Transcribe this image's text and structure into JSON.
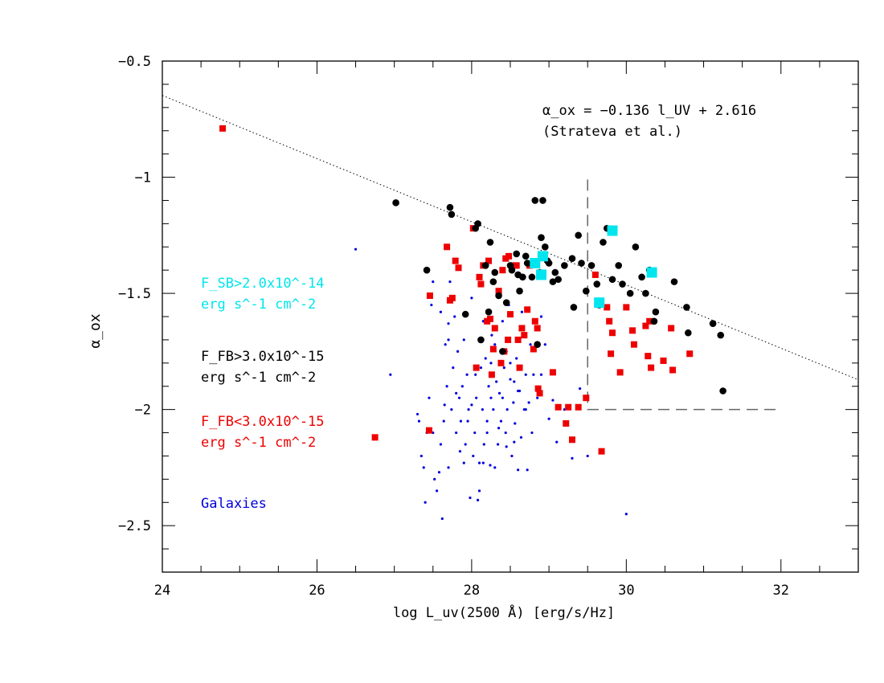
{
  "chart_data": {
    "type": "scatter",
    "xlabel": "log L_uv(2500 Å) [erg/s/Hz]",
    "ylabel": "α_ox",
    "xlim": [
      24,
      33
    ],
    "ylim": [
      -2.7,
      -0.5
    ],
    "x_ticks": [
      24,
      26,
      28,
      30,
      32
    ],
    "y_ticks": [
      -2.5,
      -2,
      -1.5,
      -1,
      -0.5
    ],
    "x_tick_labels": [
      "24",
      "26",
      "28",
      "30",
      "32"
    ],
    "y_tick_labels": [
      "−2.5",
      "−2",
      "−1.5",
      "−1",
      "−0.5"
    ],
    "grid": false,
    "relation": {
      "label": "α_ox = −0.136 l_UV + 2.616",
      "citation": "(Strateva et al.)",
      "slope": -0.136,
      "intercept": 2.616,
      "style": "dotted"
    },
    "boundary": {
      "style": "dashed",
      "points": [
        [
          29.5,
          -1.01
        ],
        [
          29.5,
          -2.0
        ],
        [
          32.0,
          -2.0
        ]
      ]
    },
    "legend": [
      {
        "line1": "F_SB>2.0x10^-14",
        "line2": "erg s^-1 cm^-2",
        "color": "#00e5ee"
      },
      {
        "line1": "F_FB>3.0x10^-15",
        "line2": "erg s^-1 cm^-2",
        "color": "#000000"
      },
      {
        "line1": "F_FB<3.0x10^-15",
        "line2": "erg s^-1 cm^-2",
        "color": "#ee0000"
      },
      {
        "line1": "Galaxies",
        "line2": "",
        "color": "#0000dd"
      }
    ],
    "series": [
      {
        "marker": "dot",
        "color": "#0000dd",
        "points": [
          [
            26.5,
            -1.31
          ],
          [
            26.95,
            -1.85
          ],
          [
            27.3,
            -2.02
          ],
          [
            27.32,
            -2.05
          ],
          [
            27.35,
            -2.2
          ],
          [
            27.38,
            -2.25
          ],
          [
            27.4,
            -2.4
          ],
          [
            27.42,
            -2.1
          ],
          [
            27.45,
            -1.95
          ],
          [
            27.48,
            -1.55
          ],
          [
            27.5,
            -1.45
          ],
          [
            27.52,
            -2.3
          ],
          [
            27.55,
            -2.35
          ],
          [
            27.58,
            -2.27
          ],
          [
            27.6,
            -2.15
          ],
          [
            27.62,
            -2.47
          ],
          [
            27.64,
            -2.05
          ],
          [
            27.66,
            -1.72
          ],
          [
            27.68,
            -1.9
          ],
          [
            27.7,
            -1.63
          ],
          [
            27.72,
            -1.45
          ],
          [
            27.74,
            -2.0
          ],
          [
            27.76,
            -1.82
          ],
          [
            27.78,
            -1.6
          ],
          [
            27.8,
            -2.1
          ],
          [
            27.82,
            -1.75
          ],
          [
            27.84,
            -1.95
          ],
          [
            27.86,
            -2.05
          ],
          [
            27.88,
            -1.9
          ],
          [
            27.9,
            -1.7
          ],
          [
            27.92,
            -2.15
          ],
          [
            27.94,
            -1.85
          ],
          [
            27.96,
            -2.0
          ],
          [
            27.98,
            -2.38
          ],
          [
            28.0,
            -1.52
          ],
          [
            28.02,
            -2.2
          ],
          [
            28.04,
            -2.1
          ],
          [
            28.06,
            -1.95
          ],
          [
            28.08,
            -2.39
          ],
          [
            28.1,
            -2.23
          ],
          [
            28.12,
            -1.82
          ],
          [
            28.14,
            -2.0
          ],
          [
            28.16,
            -2.15
          ],
          [
            28.18,
            -1.78
          ],
          [
            28.2,
            -2.05
          ],
          [
            28.22,
            -1.9
          ],
          [
            28.24,
            -2.24
          ],
          [
            28.26,
            -1.68
          ],
          [
            28.28,
            -2.0
          ],
          [
            28.3,
            -1.72
          ],
          [
            28.32,
            -1.88
          ],
          [
            28.34,
            -2.15
          ],
          [
            28.36,
            -1.93
          ],
          [
            28.38,
            -2.05
          ],
          [
            28.4,
            -1.62
          ],
          [
            28.42,
            -1.82
          ],
          [
            28.44,
            -2.1
          ],
          [
            28.46,
            -2.0
          ],
          [
            28.48,
            -1.55
          ],
          [
            28.5,
            -1.87
          ],
          [
            28.52,
            -2.2
          ],
          [
            28.54,
            -1.97
          ],
          [
            28.56,
            -2.06
          ],
          [
            28.58,
            -1.78
          ],
          [
            28.6,
            -2.26
          ],
          [
            28.62,
            -1.92
          ],
          [
            28.64,
            -2.12
          ],
          [
            28.66,
            -1.68
          ],
          [
            28.68,
            -2.0
          ],
          [
            28.7,
            -1.85
          ],
          [
            28.72,
            -2.26
          ],
          [
            28.74,
            -1.97
          ],
          [
            28.76,
            -1.72
          ],
          [
            28.78,
            -2.1
          ],
          [
            28.8,
            -1.85
          ],
          [
            28.85,
            -1.95
          ],
          [
            28.9,
            -1.6
          ],
          [
            28.95,
            -1.72
          ],
          [
            29.0,
            -2.04
          ],
          [
            29.05,
            -1.96
          ],
          [
            29.1,
            -2.14
          ],
          [
            29.2,
            -2.0
          ],
          [
            29.3,
            -2.21
          ],
          [
            29.4,
            -1.91
          ],
          [
            29.5,
            -2.2
          ],
          [
            30.0,
            -2.45
          ],
          [
            27.6,
            -1.58
          ],
          [
            27.9,
            -2.23
          ],
          [
            28.1,
            -1.7
          ],
          [
            28.25,
            -1.8
          ],
          [
            28.35,
            -2.08
          ],
          [
            28.45,
            -1.75
          ],
          [
            28.55,
            -2.14
          ],
          [
            28.65,
            -1.58
          ],
          [
            28.1,
            -2.35
          ],
          [
            27.5,
            -2.1
          ],
          [
            27.7,
            -1.7
          ],
          [
            28.6,
            -1.92
          ],
          [
            28.2,
            -2.1
          ],
          [
            28.0,
            -1.98
          ],
          [
            27.85,
            -2.18
          ],
          [
            28.4,
            -1.95
          ],
          [
            28.15,
            -1.62
          ],
          [
            27.95,
            -2.05
          ],
          [
            27.7,
            -2.25
          ],
          [
            28.5,
            -1.8
          ],
          [
            28.3,
            -2.25
          ],
          [
            28.05,
            -1.85
          ],
          [
            27.8,
            -1.93
          ],
          [
            28.7,
            -2.0
          ],
          [
            28.9,
            -1.85
          ],
          [
            28.15,
            -2.23
          ],
          [
            27.65,
            -1.98
          ],
          [
            28.45,
            -2.16
          ],
          [
            28.25,
            -1.95
          ],
          [
            28.55,
            -1.88
          ]
        ]
      },
      {
        "marker": "square",
        "color": "#ee0000",
        "points": [
          [
            24.78,
            -0.79
          ],
          [
            26.75,
            -2.12
          ],
          [
            27.45,
            -2.09
          ],
          [
            27.46,
            -1.51
          ],
          [
            27.68,
            -1.3
          ],
          [
            27.72,
            -1.53
          ],
          [
            27.75,
            -1.52
          ],
          [
            27.79,
            -1.36
          ],
          [
            27.83,
            -1.39
          ],
          [
            28.02,
            -1.22
          ],
          [
            28.06,
            -1.82
          ],
          [
            28.1,
            -1.43
          ],
          [
            28.12,
            -1.46
          ],
          [
            28.15,
            -1.38
          ],
          [
            28.2,
            -1.62
          ],
          [
            28.22,
            -1.36
          ],
          [
            28.24,
            -1.61
          ],
          [
            28.26,
            -1.85
          ],
          [
            28.28,
            -1.74
          ],
          [
            28.3,
            -1.65
          ],
          [
            28.35,
            -1.49
          ],
          [
            28.38,
            -1.8
          ],
          [
            28.4,
            -1.4
          ],
          [
            28.42,
            -1.75
          ],
          [
            28.44,
            -1.35
          ],
          [
            28.47,
            -1.7
          ],
          [
            28.48,
            -1.34
          ],
          [
            28.5,
            -1.59
          ],
          [
            28.55,
            -1.38
          ],
          [
            28.58,
            -1.38
          ],
          [
            28.6,
            -1.7
          ],
          [
            28.62,
            -1.82
          ],
          [
            28.65,
            -1.65
          ],
          [
            28.68,
            -1.68
          ],
          [
            28.72,
            -1.57
          ],
          [
            28.75,
            -1.38
          ],
          [
            28.8,
            -1.74
          ],
          [
            28.82,
            -1.62
          ],
          [
            28.85,
            -1.65
          ],
          [
            28.86,
            -1.91
          ],
          [
            28.88,
            -1.93
          ],
          [
            29.05,
            -1.84
          ],
          [
            29.12,
            -1.99
          ],
          [
            29.22,
            -2.06
          ],
          [
            29.25,
            -1.99
          ],
          [
            29.3,
            -2.13
          ],
          [
            29.38,
            -1.99
          ],
          [
            29.48,
            -1.95
          ],
          [
            29.6,
            -1.42
          ],
          [
            29.68,
            -2.18
          ],
          [
            29.75,
            -1.56
          ],
          [
            29.78,
            -1.62
          ],
          [
            29.8,
            -1.76
          ],
          [
            29.82,
            -1.67
          ],
          [
            29.92,
            -1.84
          ],
          [
            30.0,
            -1.56
          ],
          [
            30.08,
            -1.66
          ],
          [
            30.1,
            -1.72
          ],
          [
            30.25,
            -1.64
          ],
          [
            30.28,
            -1.77
          ],
          [
            30.3,
            -1.62
          ],
          [
            30.32,
            -1.82
          ],
          [
            30.48,
            -1.79
          ],
          [
            30.58,
            -1.65
          ],
          [
            30.6,
            -1.83
          ],
          [
            30.82,
            -1.76
          ]
        ]
      },
      {
        "marker": "circle",
        "color": "#000000",
        "points": [
          [
            27.02,
            -1.11
          ],
          [
            27.42,
            -1.4
          ],
          [
            27.72,
            -1.13
          ],
          [
            27.74,
            -1.16
          ],
          [
            27.92,
            -1.59
          ],
          [
            28.05,
            -1.22
          ],
          [
            28.08,
            -1.2
          ],
          [
            28.12,
            -1.7
          ],
          [
            28.18,
            -1.38
          ],
          [
            28.22,
            -1.58
          ],
          [
            28.24,
            -1.28
          ],
          [
            28.28,
            -1.45
          ],
          [
            28.3,
            -1.41
          ],
          [
            28.35,
            -1.51
          ],
          [
            28.4,
            -1.75
          ],
          [
            28.45,
            -1.54
          ],
          [
            28.5,
            -1.38
          ],
          [
            28.52,
            -1.4
          ],
          [
            28.58,
            -1.33
          ],
          [
            28.6,
            -1.42
          ],
          [
            28.62,
            -1.49
          ],
          [
            28.66,
            -1.43
          ],
          [
            28.7,
            -1.34
          ],
          [
            28.72,
            -1.37
          ],
          [
            28.78,
            -1.43
          ],
          [
            28.82,
            -1.1
          ],
          [
            28.85,
            -1.72
          ],
          [
            28.88,
            -1.41
          ],
          [
            28.9,
            -1.26
          ],
          [
            28.92,
            -1.1
          ],
          [
            28.95,
            -1.3
          ],
          [
            28.98,
            -1.36
          ],
          [
            29.0,
            -1.37
          ],
          [
            29.05,
            -1.45
          ],
          [
            29.08,
            -1.41
          ],
          [
            29.12,
            -1.44
          ],
          [
            29.2,
            -1.38
          ],
          [
            29.3,
            -1.35
          ],
          [
            29.32,
            -1.56
          ],
          [
            29.38,
            -1.25
          ],
          [
            29.42,
            -1.37
          ],
          [
            29.48,
            -1.49
          ],
          [
            29.55,
            -1.38
          ],
          [
            29.62,
            -1.46
          ],
          [
            29.65,
            -1.55
          ],
          [
            29.7,
            -1.28
          ],
          [
            29.75,
            -1.22
          ],
          [
            29.82,
            -1.44
          ],
          [
            29.9,
            -1.38
          ],
          [
            29.95,
            -1.46
          ],
          [
            30.05,
            -1.5
          ],
          [
            30.12,
            -1.3
          ],
          [
            30.2,
            -1.43
          ],
          [
            30.25,
            -1.5
          ],
          [
            30.3,
            -1.4
          ],
          [
            30.36,
            -1.62
          ],
          [
            30.38,
            -1.58
          ],
          [
            30.62,
            -1.45
          ],
          [
            30.78,
            -1.56
          ],
          [
            30.8,
            -1.67
          ],
          [
            31.12,
            -1.63
          ],
          [
            31.22,
            -1.68
          ],
          [
            31.25,
            -1.92
          ]
        ]
      },
      {
        "marker": "big-square",
        "color": "#00e5ee",
        "points": [
          [
            28.82,
            -1.37
          ],
          [
            28.9,
            -1.42
          ],
          [
            28.92,
            -1.34
          ],
          [
            29.65,
            -1.54
          ],
          [
            29.82,
            -1.23
          ],
          [
            30.33,
            -1.41
          ]
        ]
      }
    ]
  }
}
